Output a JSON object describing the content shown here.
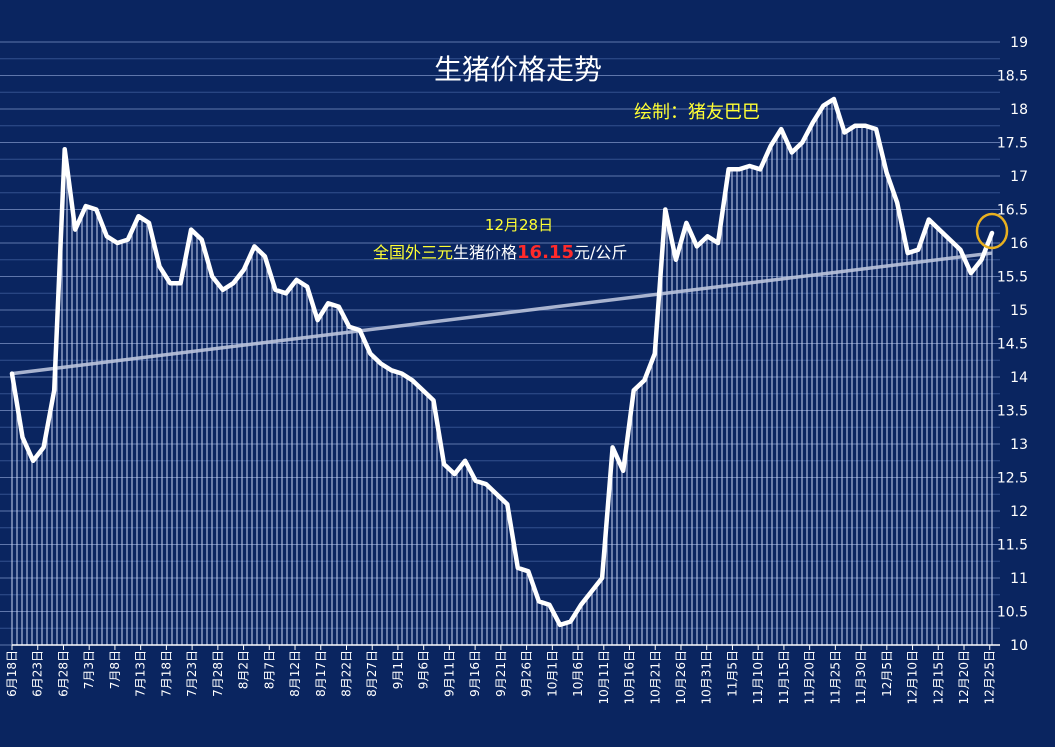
{
  "chart_data": {
    "type": "line",
    "title": "生猪价格走势",
    "credit": "绘制：猪友巴巴",
    "ylim": [
      10,
      19
    ],
    "y_ticks": [
      "19",
      "18.5",
      "18",
      "17.5",
      "17",
      "16.5",
      "16",
      "15.5",
      "15",
      "14.5",
      "14",
      "13.5",
      "13",
      "12.5",
      "12",
      "11.5",
      "11",
      "10.5",
      "10"
    ],
    "x_tick_labels": [
      "6月18日",
      "6月23日",
      "6月28日",
      "7月3日",
      "7月8日",
      "7月13日",
      "7月18日",
      "7月23日",
      "7月28日",
      "8月2日",
      "8月7日",
      "8月12日",
      "8月17日",
      "8月22日",
      "8月27日",
      "9月1日",
      "9月6日",
      "9月11日",
      "9月16日",
      "9月21日",
      "9月26日",
      "10月1日",
      "10月6日",
      "10月11日",
      "10月16日",
      "10月21日",
      "10月26日",
      "10月31日",
      "11月5日",
      "11月10日",
      "11月15日",
      "11月20日",
      "11月25日",
      "11月30日",
      "12月5日",
      "12月10日",
      "12月15日",
      "12月20日",
      "12月25日"
    ],
    "grid": true,
    "series": [
      {
        "values": [
          14.05,
          13.1,
          12.75,
          12.95,
          13.8,
          17.4,
          16.2,
          16.55,
          16.5,
          16.1,
          16.0,
          16.05,
          16.4,
          16.3,
          15.65,
          15.4,
          15.4,
          16.2,
          16.05,
          15.5,
          15.3,
          15.4,
          15.6,
          15.95,
          15.8,
          15.3,
          15.25,
          15.45,
          15.35,
          14.85,
          15.1,
          15.05,
          14.75,
          14.7,
          14.35,
          14.2,
          14.1,
          14.05,
          13.95,
          13.8,
          13.65,
          12.7,
          12.55,
          12.75,
          12.45,
          12.4,
          12.25,
          12.1,
          11.15,
          11.1,
          10.65,
          10.6,
          10.3,
          10.35,
          10.6,
          10.8,
          11.0,
          12.95,
          12.6,
          13.8,
          13.95,
          14.35,
          16.5,
          15.75,
          16.3,
          15.95,
          16.1,
          16.0,
          17.1,
          17.1,
          17.15,
          17.1,
          17.45,
          17.7,
          17.35,
          17.5,
          17.8,
          18.05,
          18.15,
          17.65,
          17.75,
          17.75,
          17.7,
          17.05,
          16.6,
          15.85,
          15.9,
          16.35,
          16.2,
          16.05,
          15.9,
          15.55,
          15.75,
          16.15
        ],
        "color": "#ffffff",
        "trend_start": 14.05,
        "trend_end": 15.85
      }
    ],
    "annotation": {
      "date": "12月28日",
      "prefix": "全国外三元",
      "middle": "生猪价格",
      "value": "16.15",
      "unit": "元/公斤"
    },
    "colors": {
      "background": "#0a2560",
      "line": "#ffffff",
      "trend": "#b9c3dc",
      "highlight": "#ffff33",
      "value": "#ff2a2a",
      "circle": "#e8b020"
    }
  }
}
